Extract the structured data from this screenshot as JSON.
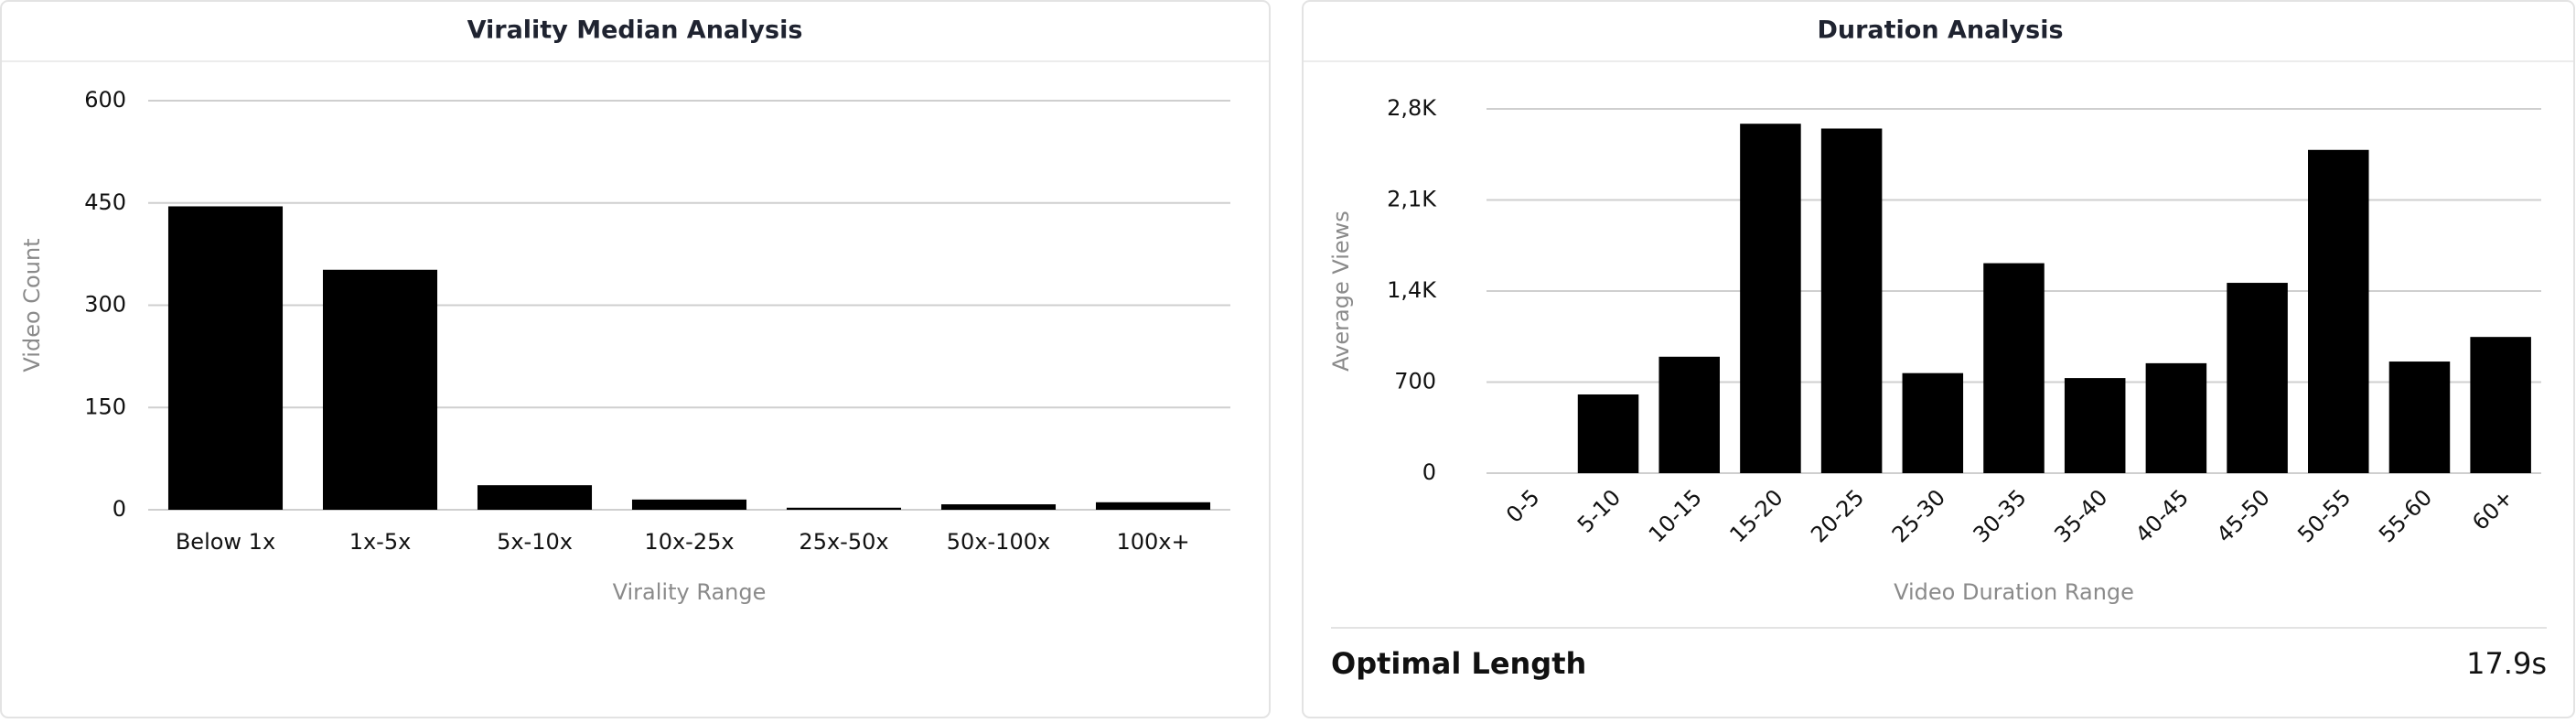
{
  "chart_data": [
    {
      "type": "bar",
      "title": "Virality Median Analysis",
      "x_label": "Virality Range",
      "y_label": "Video Count",
      "categories": [
        "Below 1x",
        "1x-5x",
        "5x-10x",
        "10x-25x",
        "25x-50x",
        "50x-100x",
        "100x+"
      ],
      "values": [
        445,
        352,
        36,
        15,
        3,
        8,
        11
      ],
      "color": "#000000",
      "ylim": [
        0,
        600
      ],
      "yticks": [
        0,
        150,
        300,
        450,
        600
      ],
      "grid": true
    },
    {
      "type": "bar",
      "title": "Duration Analysis",
      "x_label": "Video Duration Range",
      "y_label": "Average Views",
      "categories": [
        "0-5",
        "5-10",
        "10-15",
        "15-20",
        "20-25",
        "25-30",
        "30-35",
        "35-40",
        "40-45",
        "45-50",
        "50-55",
        "55-60",
        "60+"
      ],
      "values": [
        0,
        605,
        895,
        2686,
        2649,
        769,
        1614,
        731,
        845,
        1463,
        2485,
        858,
        1047
      ],
      "color": "#000000",
      "ylim": [
        0,
        2800
      ],
      "yticks": [
        0,
        700,
        {
          "value": 1400,
          "label": "1,4K"
        },
        {
          "value": 2100,
          "label": "2,1K"
        },
        {
          "value": 2800,
          "label": "2,8K"
        }
      ],
      "grid": true
    }
  ],
  "summary": {
    "label": "Optimal Length",
    "value": "17.9s"
  }
}
